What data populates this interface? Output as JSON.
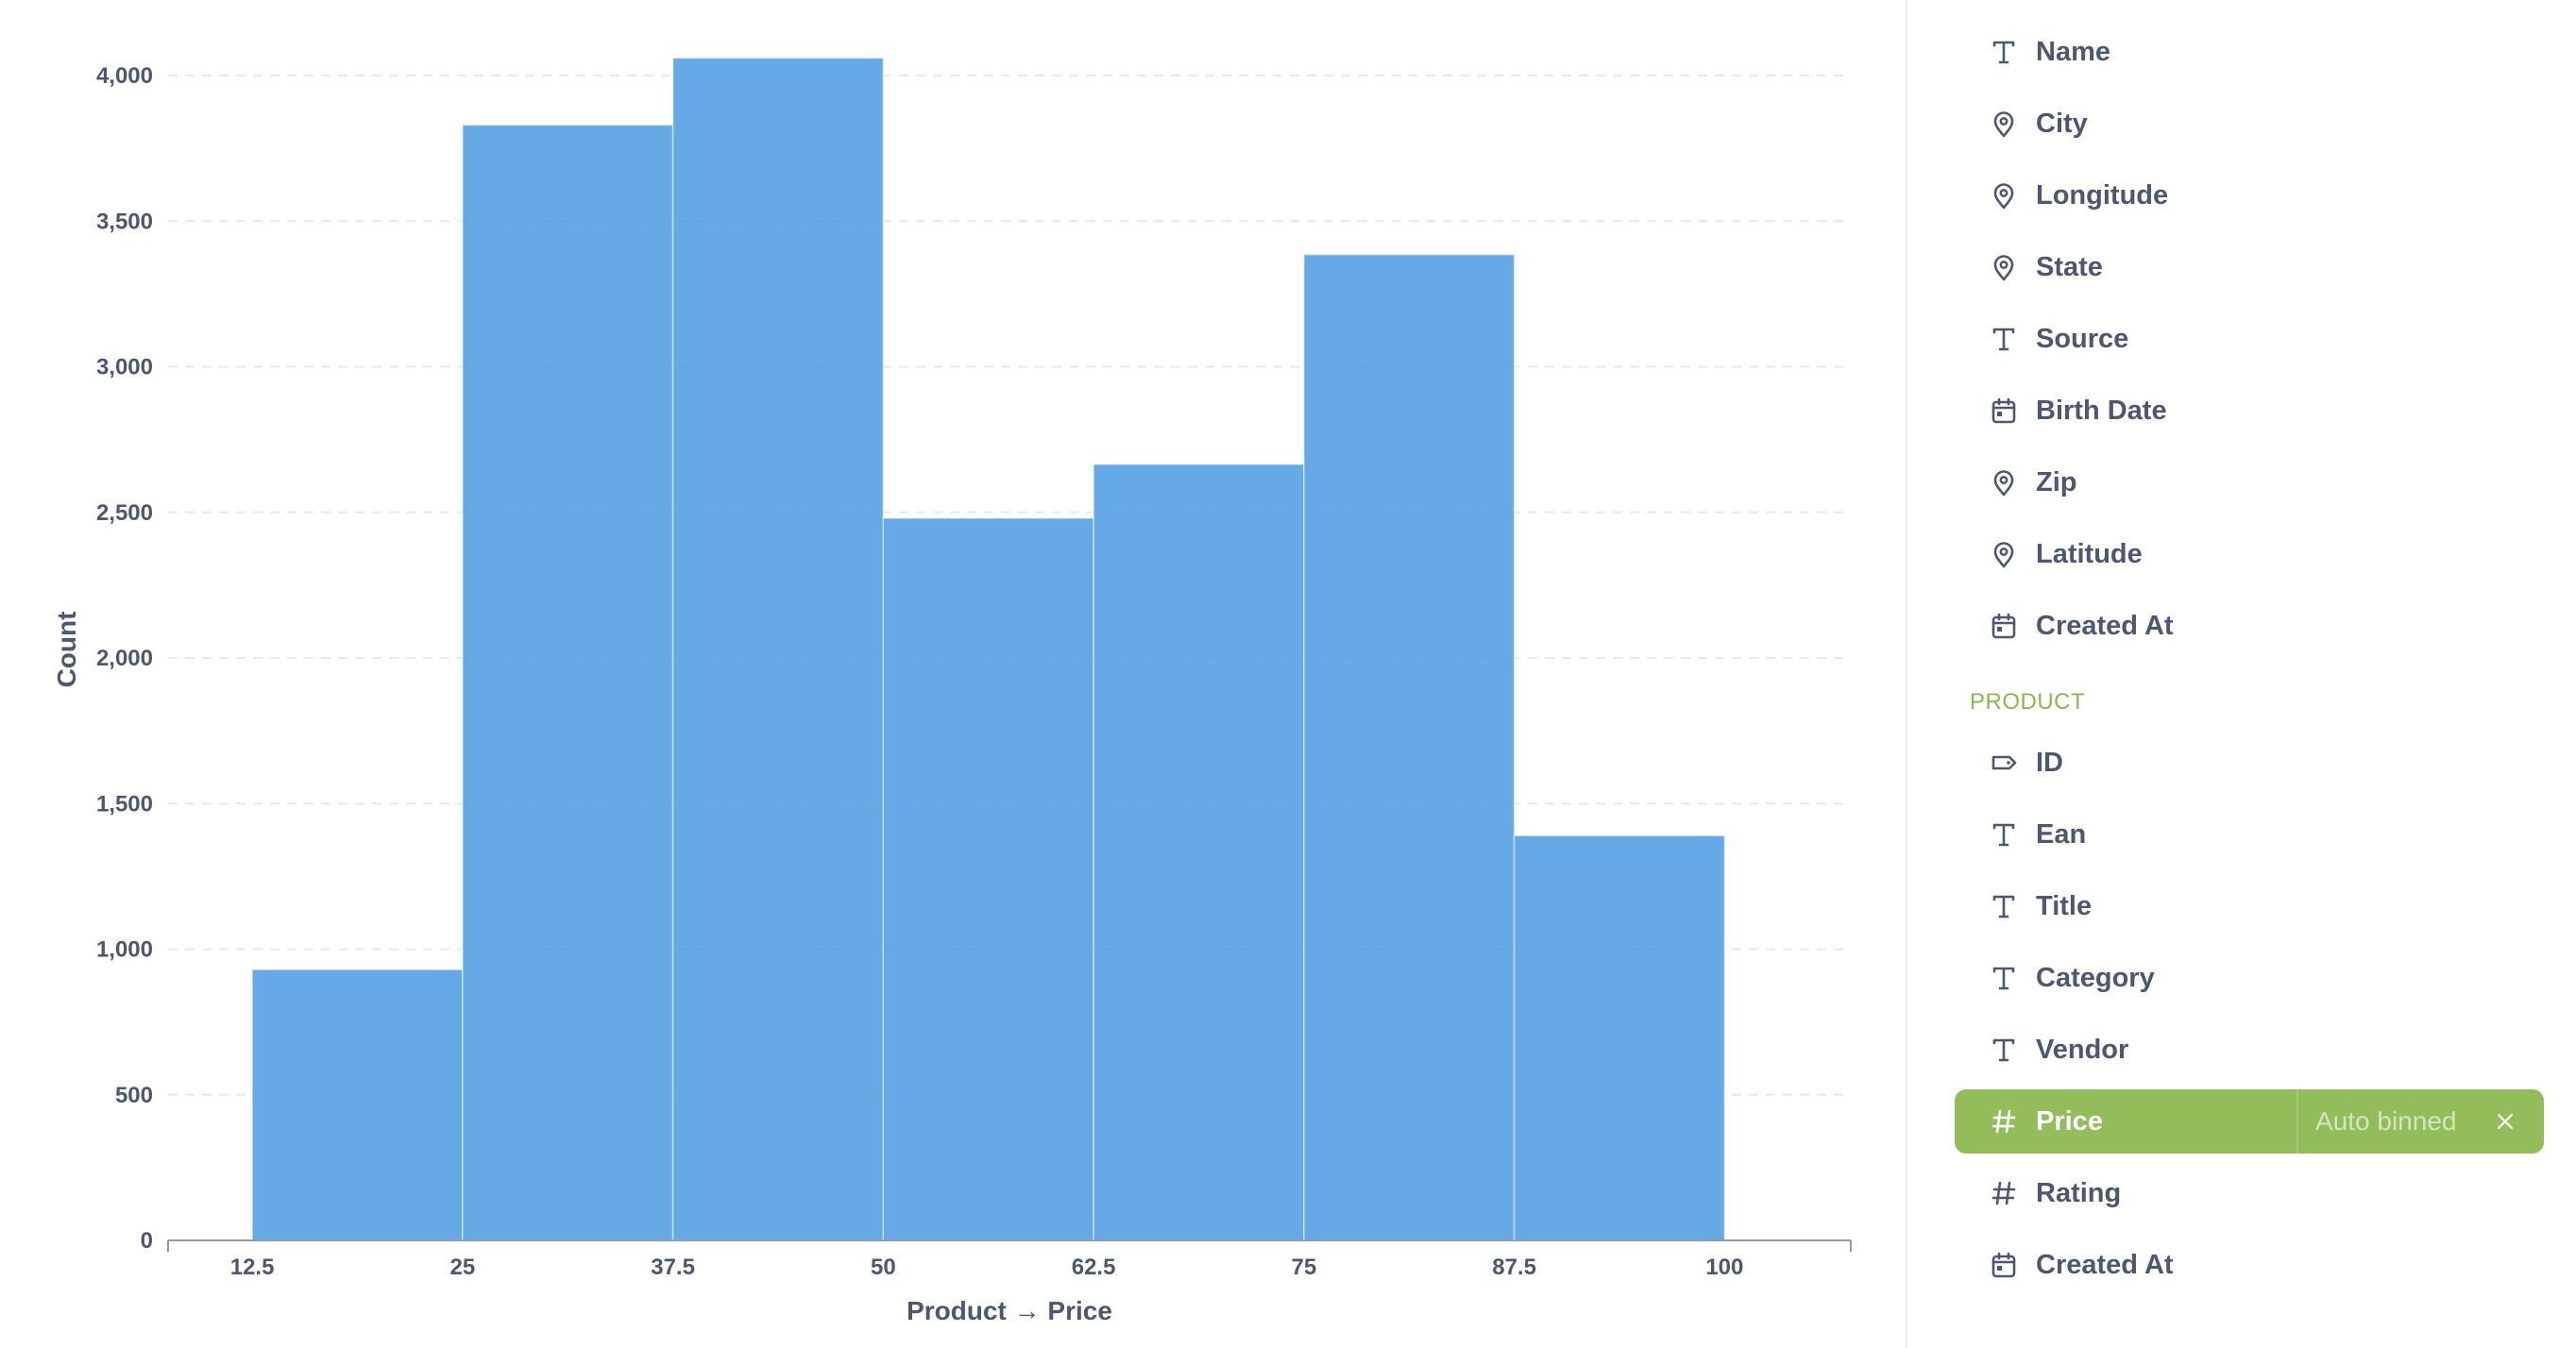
{
  "chart_data": {
    "type": "bar",
    "xlabel": "Product → Price",
    "ylabel": "Count",
    "x_ticks": [
      "12.5",
      "25",
      "37.5",
      "50",
      "62.5",
      "75",
      "87.5",
      "100"
    ],
    "y_ticks": [
      "0",
      "500",
      "1,000",
      "1,500",
      "2,000",
      "2,500",
      "3,000",
      "3,500",
      "4,000"
    ],
    "ylim": [
      0,
      4000
    ],
    "grid": true,
    "bar_color": "#509ee3",
    "bins": [
      {
        "range": "12.5–25",
        "start": 12.5,
        "end": 25,
        "value": 930
      },
      {
        "range": "25–37.5",
        "start": 25,
        "end": 37.5,
        "value": 3830
      },
      {
        "range": "37.5–50",
        "start": 37.5,
        "end": 50,
        "value": 4060
      },
      {
        "range": "50–62.5",
        "start": 50,
        "end": 62.5,
        "value": 2480
      },
      {
        "range": "62.5–75",
        "start": 62.5,
        "end": 75,
        "value": 2665
      },
      {
        "range": "75–87.5",
        "start": 75,
        "end": 87.5,
        "value": 3385
      },
      {
        "range": "87.5–100",
        "start": 87.5,
        "end": 100,
        "value": 1390
      }
    ]
  },
  "sidebar": {
    "fields_top": [
      {
        "label": "Name",
        "icon": "text-icon"
      },
      {
        "label": "City",
        "icon": "location-icon"
      },
      {
        "label": "Longitude",
        "icon": "location-icon"
      },
      {
        "label": "State",
        "icon": "location-icon"
      },
      {
        "label": "Source",
        "icon": "text-icon"
      },
      {
        "label": "Birth Date",
        "icon": "calendar-icon"
      },
      {
        "label": "Zip",
        "icon": "location-icon"
      },
      {
        "label": "Latitude",
        "icon": "location-icon"
      },
      {
        "label": "Created At",
        "icon": "calendar-icon"
      }
    ],
    "section_header": "PRODUCT",
    "section_color": "#84bb4c",
    "fields_product": [
      {
        "label": "ID",
        "icon": "tag-icon"
      },
      {
        "label": "Ean",
        "icon": "text-icon"
      },
      {
        "label": "Title",
        "icon": "text-icon"
      },
      {
        "label": "Category",
        "icon": "text-icon"
      },
      {
        "label": "Vendor",
        "icon": "text-icon"
      },
      {
        "label": "Price",
        "icon": "hash-icon",
        "active": true,
        "binning": "Auto binned"
      },
      {
        "label": "Rating",
        "icon": "hash-icon"
      },
      {
        "label": "Created At",
        "icon": "calendar-icon"
      }
    ],
    "active_color": "#93bc5b"
  }
}
